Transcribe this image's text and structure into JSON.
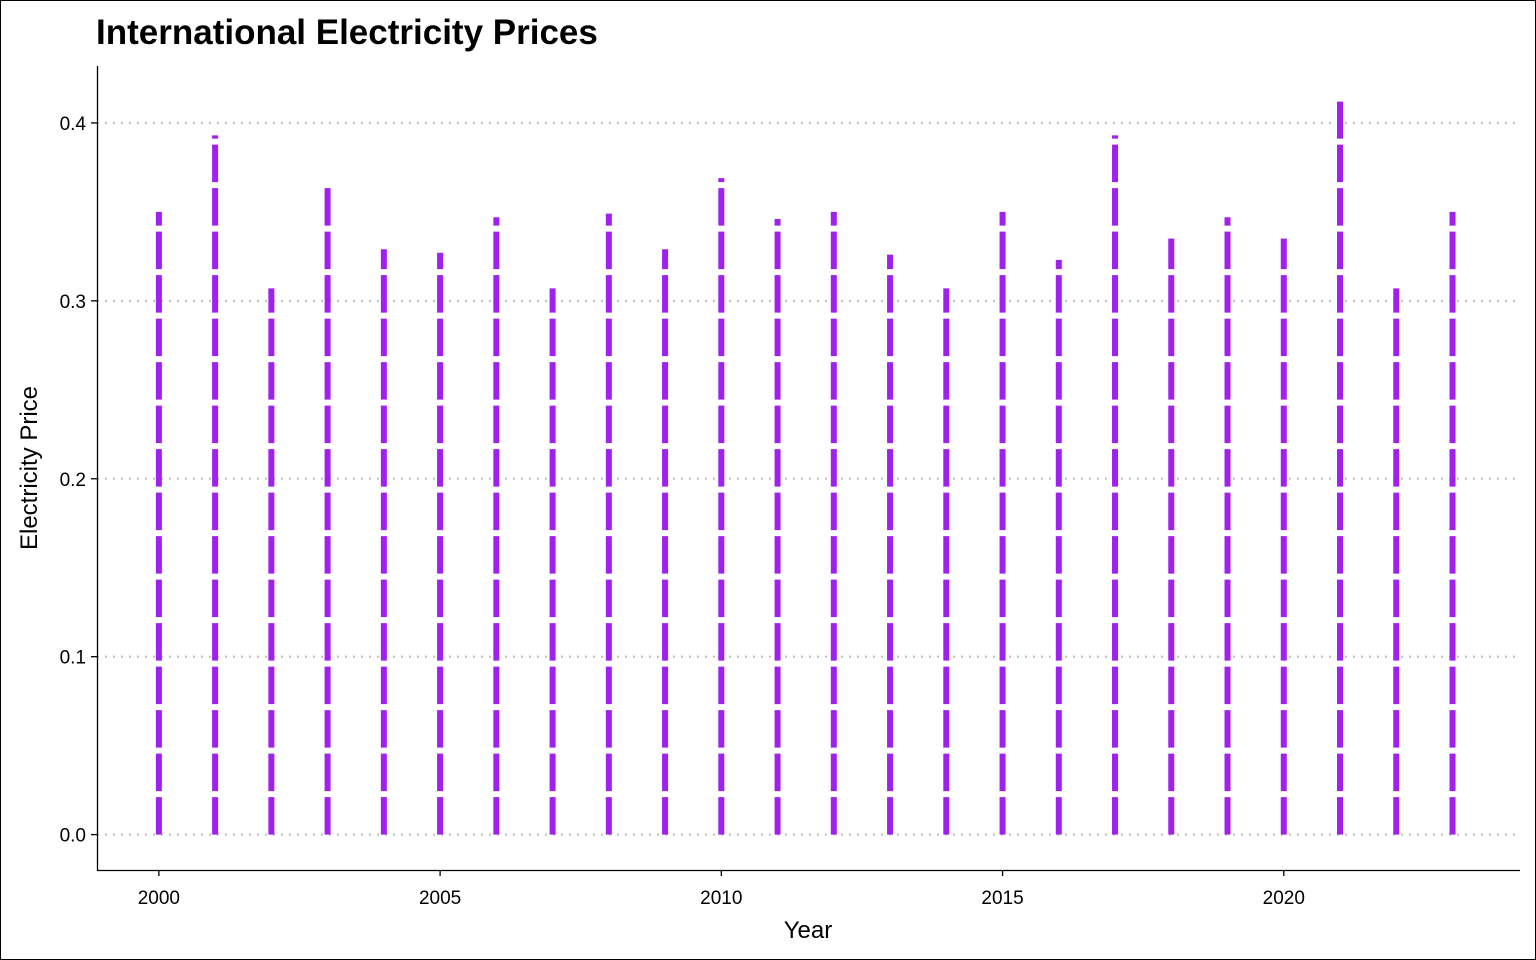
{
  "chart_data": {
    "type": "bar",
    "title": "International Electricity Prices",
    "xlabel": "Year",
    "ylabel": "Electricity Price",
    "x": [
      2000,
      2001,
      2002,
      2003,
      2004,
      2005,
      2006,
      2007,
      2008,
      2009,
      2010,
      2011,
      2012,
      2013,
      2014,
      2015,
      2016,
      2017,
      2018,
      2019,
      2020,
      2021,
      2022,
      2023
    ],
    "values": [
      0.35,
      0.393,
      0.307,
      0.365,
      0.329,
      0.327,
      0.347,
      0.307,
      0.349,
      0.329,
      0.369,
      0.346,
      0.35,
      0.326,
      0.307,
      0.35,
      0.323,
      0.393,
      0.335,
      0.347,
      0.335,
      0.412,
      0.307,
      0.35
    ],
    "xlim": [
      1998.9,
      2024.2
    ],
    "ylim": [
      -0.0199,
      0.432
    ],
    "x_ticks": [
      "2000",
      "2005",
      "2010",
      "2015",
      "2020"
    ],
    "y_ticks": [
      "0.0",
      "0.1",
      "0.2",
      "0.3",
      "0.4"
    ],
    "grid": "horizontal dotted",
    "bar_style": "dashed vertical lines",
    "color": "#A020F0",
    "grid_color": "#bebebe"
  }
}
